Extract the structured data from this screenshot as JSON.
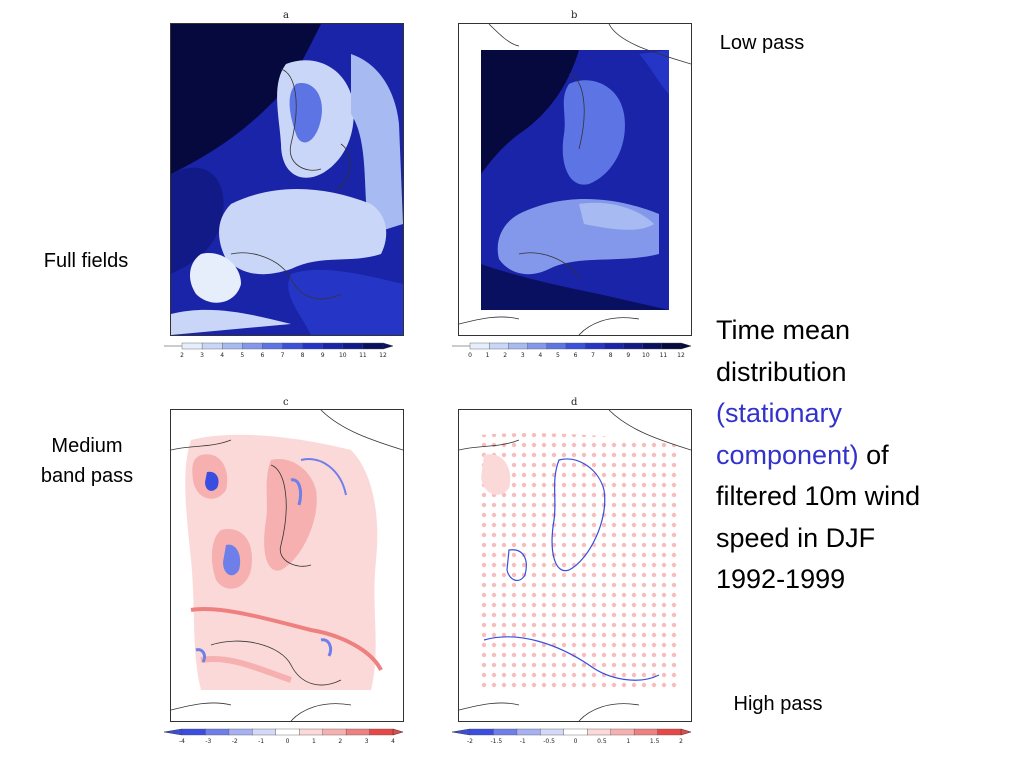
{
  "panels": {
    "a": {
      "letter": "a",
      "colorbar_ticks": [
        "2",
        "3",
        "4",
        "5",
        "6",
        "7",
        "8",
        "9",
        "10",
        "11",
        "12"
      ]
    },
    "b": {
      "letter": "b",
      "colorbar_ticks": [
        "0",
        "1",
        "2",
        "3",
        "4",
        "5",
        "6",
        "7",
        "8",
        "9",
        "10",
        "11",
        "12"
      ]
    },
    "c": {
      "letter": "c",
      "colorbar_ticks": [
        "-4",
        "-3",
        "-2",
        "-1",
        "0",
        "1",
        "2",
        "3",
        "4"
      ]
    },
    "d": {
      "letter": "d",
      "colorbar_ticks": [
        "-2",
        "-1.5",
        "-1",
        "-0.5",
        "0",
        "0.5",
        "1",
        "1.5",
        "2"
      ]
    }
  },
  "row_labels": {
    "full_fields": "Full fields",
    "medium_band_pass": [
      "Medium",
      "band pass"
    ]
  },
  "column_labels": {
    "low_pass": "Low pass",
    "high_pass": "High pass"
  },
  "caption": {
    "line1": "Time mean",
    "line2": "distribution",
    "line3": "(stationary",
    "line4": "component)",
    "line4_tail": " of",
    "line5": "filtered 10m wind",
    "line6": "speed in DJF",
    "line7": "1992-1999"
  },
  "colors": {
    "highlight": "#3333cc",
    "blue_scale": [
      "#e6eefc",
      "#c9d6f7",
      "#a7baf1",
      "#8398ea",
      "#5d74e4",
      "#3b51d9",
      "#2536c6",
      "#1a24a8",
      "#111a86",
      "#0a1060",
      "#06093e"
    ],
    "diverging_scale": [
      "#3a4de0",
      "#6f7fea",
      "#a6b0f2",
      "#d5d9f8",
      "#ffffff",
      "#fbd9d9",
      "#f6b0b0",
      "#ef8080",
      "#e64848"
    ]
  }
}
